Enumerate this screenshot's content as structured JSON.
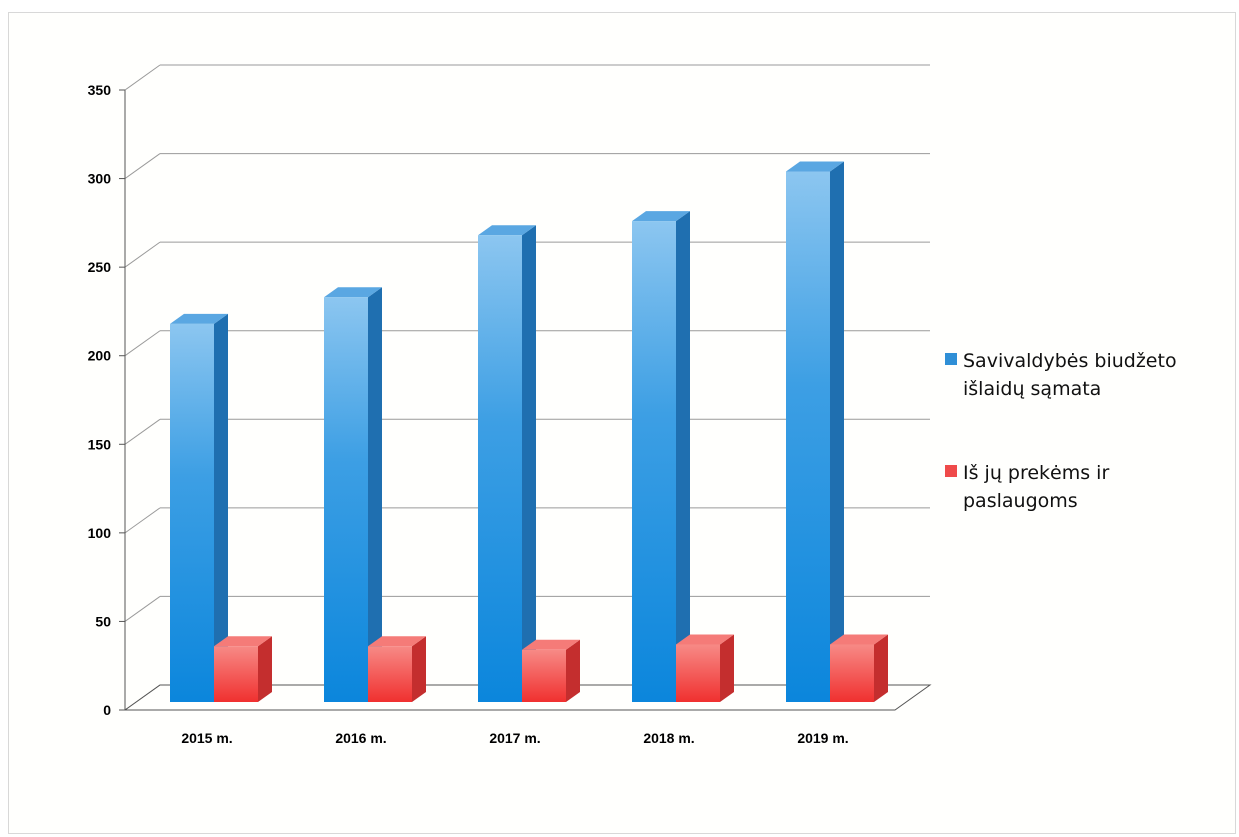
{
  "chart_data": {
    "type": "bar",
    "categories": [
      "2015 m.",
      "2016 m.",
      "2017 m.",
      "2018 m.",
      "2019 m."
    ],
    "series": [
      {
        "name": "Savivaldybės biudžeto išlaidų sąmata",
        "values": [
          218,
          233,
          268,
          276,
          304
        ],
        "color": "#2f8fd6"
      },
      {
        "name": "Iš jų prekėms ir paslaugoms",
        "values": [
          36,
          36,
          34,
          37,
          37
        ],
        "color": "#ef4a4a"
      }
    ],
    "ylim": [
      0,
      350
    ],
    "yticks": [
      0,
      50,
      100,
      150,
      200,
      250,
      300,
      350
    ],
    "grid": true,
    "legend_position": "right",
    "legend_lines": [
      [
        "Savivaldybės biudžeto",
        "išlaidų sąmata"
      ],
      [
        "Iš jų prekėms ir",
        "paslaugoms"
      ]
    ]
  }
}
